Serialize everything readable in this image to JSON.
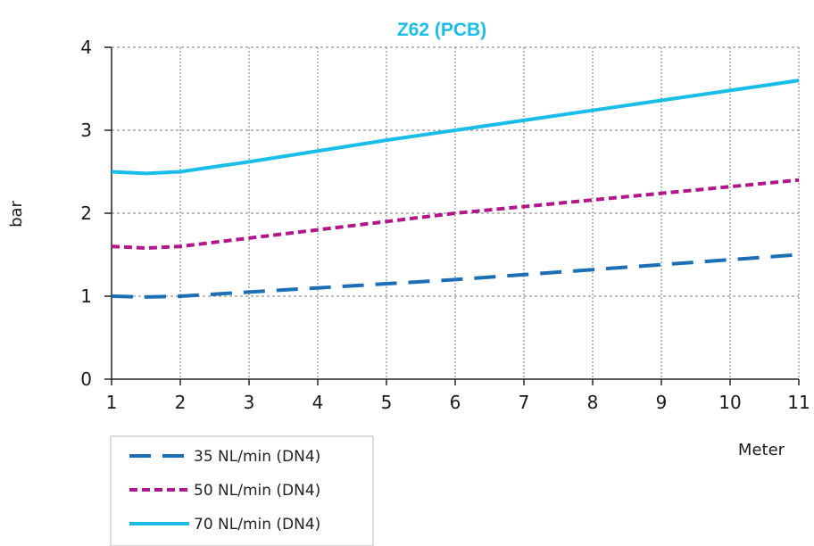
{
  "chart_data": {
    "type": "line",
    "title": "Z62 (PCB)",
    "xlabel": "Meter",
    "ylabel": "bar",
    "xlim": [
      1,
      11
    ],
    "ylim": [
      0,
      4
    ],
    "xticks": [
      "1",
      "2",
      "3",
      "4",
      "5",
      "6",
      "7",
      "8",
      "9",
      "10",
      "11"
    ],
    "yticks": [
      "0",
      "1",
      "2",
      "3",
      "4"
    ],
    "grid": true,
    "legend_position": "bottom-left",
    "series": [
      {
        "name": "35 NL/min (DN4)",
        "color": "#1c6fb5",
        "style": "long-dash",
        "x": [
          1,
          1.5,
          2,
          3,
          4,
          5,
          6,
          7,
          8,
          9,
          10,
          11
        ],
        "y": [
          1.0,
          0.99,
          1.0,
          1.05,
          1.1,
          1.15,
          1.2,
          1.26,
          1.32,
          1.38,
          1.44,
          1.5
        ]
      },
      {
        "name": "50 NL/min (DN4)",
        "color": "#b0178a",
        "style": "short-dash",
        "x": [
          1,
          1.5,
          2,
          3,
          4,
          5,
          6,
          7,
          8,
          9,
          10,
          11
        ],
        "y": [
          1.6,
          1.58,
          1.6,
          1.7,
          1.8,
          1.9,
          2.0,
          2.08,
          2.16,
          2.24,
          2.32,
          2.4
        ]
      },
      {
        "name": "70 NL/min (DN4)",
        "color": "#19bde8",
        "style": "solid",
        "x": [
          1,
          1.5,
          2,
          3,
          4,
          5,
          6,
          7,
          8,
          9,
          10,
          11
        ],
        "y": [
          2.5,
          2.48,
          2.5,
          2.62,
          2.75,
          2.88,
          3.0,
          3.12,
          3.24,
          3.36,
          3.48,
          3.6
        ]
      }
    ]
  }
}
